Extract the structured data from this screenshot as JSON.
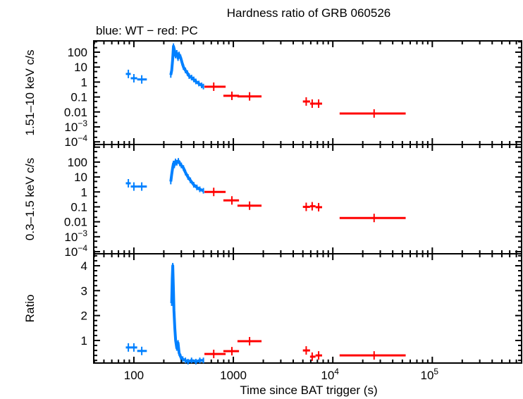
{
  "chart_data": {
    "type": "scatter",
    "title": "Hardness ratio of GRB 060526",
    "subtitle": "blue: WT − red: PC",
    "xlabel": "Time since BAT trigger (s)",
    "x_scale": "log",
    "xlim": [
      39.5,
      790000
    ],
    "x_ticks": [
      {
        "v": 100,
        "label": "100"
      },
      {
        "v": 1000,
        "label": "1000"
      },
      {
        "v": 10000,
        "label": "10",
        "exp": "4"
      },
      {
        "v": 100000,
        "label": "10",
        "exp": "5"
      }
    ],
    "colors": {
      "WT": "#0080ff",
      "PC": "#ff0000"
    },
    "panels": [
      {
        "ylabel": "1.51–10 keV c/s",
        "y_scale": "log",
        "ylim": [
          6.6e-05,
          570
        ],
        "y_ticks": [
          {
            "v": 100,
            "label": "100"
          },
          {
            "v": 10,
            "label": "10"
          },
          {
            "v": 1,
            "label": "1"
          },
          {
            "v": 0.1,
            "label": "0.1"
          },
          {
            "v": 0.01,
            "label": "0.01"
          },
          {
            "v": 0.001,
            "label": "10",
            "exp": "−3"
          },
          {
            "v": 0.0001,
            "label": "10",
            "exp": "−4"
          }
        ],
        "series": [
          {
            "mode": "WT",
            "points": [
              [
                88,
                3.5,
                83,
                93
              ],
              [
                100,
                1.8,
                93,
                108
              ],
              [
                120,
                1.5,
                108,
                135
              ]
            ],
            "curve": [
              [
                235,
                3
              ],
              [
                240,
                6
              ],
              [
                245,
                30
              ],
              [
                250,
                250
              ],
              [
                255,
                150
              ],
              [
                262,
                60
              ],
              [
                270,
                90
              ],
              [
                278,
                40
              ],
              [
                285,
                70
              ],
              [
                295,
                45
              ],
              [
                305,
                20
              ],
              [
                315,
                10
              ],
              [
                330,
                6
              ],
              [
                345,
                4
              ],
              [
                360,
                2.5
              ],
              [
                380,
                2
              ],
              [
                400,
                1.5
              ],
              [
                420,
                1.1
              ],
              [
                450,
                0.8
              ],
              [
                480,
                0.6
              ],
              [
                500,
                0.5
              ]
            ]
          },
          {
            "mode": "PC",
            "points": [
              [
                635,
                0.49,
                512,
                836
              ],
              [
                967,
                0.12,
                794,
                1140
              ],
              [
                1456,
                0.11,
                1100,
                1920
              ],
              [
                5400,
                0.05,
                5000,
                5900
              ],
              [
                6200,
                0.036,
                5900,
                6700
              ],
              [
                7200,
                0.036,
                6700,
                7800
              ],
              [
                26000,
                0.0079,
                11700,
                54000
              ]
            ]
          }
        ]
      },
      {
        "ylabel": "0.3–1.5 keV c/s",
        "y_scale": "log",
        "ylim": [
          7.2e-05,
          1500
        ],
        "y_ticks": [
          {
            "v": 100,
            "label": "100"
          },
          {
            "v": 10,
            "label": "10"
          },
          {
            "v": 1,
            "label": "1"
          },
          {
            "v": 0.1,
            "label": "0.1"
          },
          {
            "v": 0.01,
            "label": "0.01"
          },
          {
            "v": 0.001,
            "label": "10",
            "exp": "−3"
          },
          {
            "v": 0.0001,
            "label": "10",
            "exp": "−4"
          }
        ],
        "series": [
          {
            "mode": "WT",
            "points": [
              [
                88,
                3.8,
                83,
                93
              ],
              [
                100,
                2.3,
                93,
                108
              ],
              [
                120,
                2.3,
                108,
                135
              ]
            ],
            "curve": [
              [
                235,
                5
              ],
              [
                240,
                15
              ],
              [
                245,
                40
              ],
              [
                250,
                80
              ],
              [
                255,
                60
              ],
              [
                262,
                110
              ],
              [
                270,
                90
              ],
              [
                280,
                120
              ],
              [
                290,
                80
              ],
              [
                300,
                60
              ],
              [
                315,
                40
              ],
              [
                330,
                20
              ],
              [
                350,
                10
              ],
              [
                370,
                6
              ],
              [
                400,
                3
              ],
              [
                430,
                2
              ],
              [
                460,
                1.5
              ],
              [
                500,
                1.2
              ]
            ]
          },
          {
            "mode": "PC",
            "points": [
              [
                635,
                1.0,
                512,
                836
              ],
              [
                967,
                0.27,
                794,
                1140
              ],
              [
                1456,
                0.12,
                1100,
                1920
              ],
              [
                5400,
                0.1,
                5000,
                5900
              ],
              [
                6200,
                0.11,
                5900,
                6700
              ],
              [
                7200,
                0.095,
                6700,
                7800
              ],
              [
                26000,
                0.018,
                11700,
                54000
              ]
            ]
          }
        ]
      },
      {
        "ylabel": "Ratio",
        "y_scale": "linear",
        "ylim": [
          0.094,
          4.48
        ],
        "y_ticks": [
          {
            "v": 1,
            "label": "1"
          },
          {
            "v": 2,
            "label": "2"
          },
          {
            "v": 3,
            "label": "3"
          },
          {
            "v": 4,
            "label": "4"
          }
        ],
        "series": [
          {
            "mode": "WT",
            "points": [
              [
                88,
                0.72,
                83,
                93
              ],
              [
                100,
                0.72,
                93,
                108
              ],
              [
                120,
                0.58,
                108,
                135
              ]
            ],
            "curve": [
              [
                240,
                2.5
              ],
              [
                243,
                3.5
              ],
              [
                246,
                4.0
              ],
              [
                250,
                3.0
              ],
              [
                253,
                2.2
              ],
              [
                258,
                1.5
              ],
              [
                263,
                1.0
              ],
              [
                270,
                0.7
              ],
              [
                278,
                0.9
              ],
              [
                285,
                0.5
              ],
              [
                295,
                0.35
              ],
              [
                310,
                0.25
              ],
              [
                330,
                0.2
              ],
              [
                350,
                0.15
              ],
              [
                380,
                0.2
              ],
              [
                420,
                0.15
              ],
              [
                460,
                0.2
              ],
              [
                500,
                0.2
              ]
            ]
          },
          {
            "mode": "PC",
            "points": [
              [
                635,
                0.46,
                512,
                836
              ],
              [
                967,
                0.57,
                794,
                1140
              ],
              [
                1456,
                0.97,
                1100,
                1920
              ],
              [
                5400,
                0.6,
                5000,
                5900
              ],
              [
                6200,
                0.35,
                5900,
                6700
              ],
              [
                7200,
                0.4,
                6700,
                7800
              ],
              [
                26000,
                0.4,
                11700,
                54000
              ]
            ]
          }
        ]
      }
    ]
  }
}
